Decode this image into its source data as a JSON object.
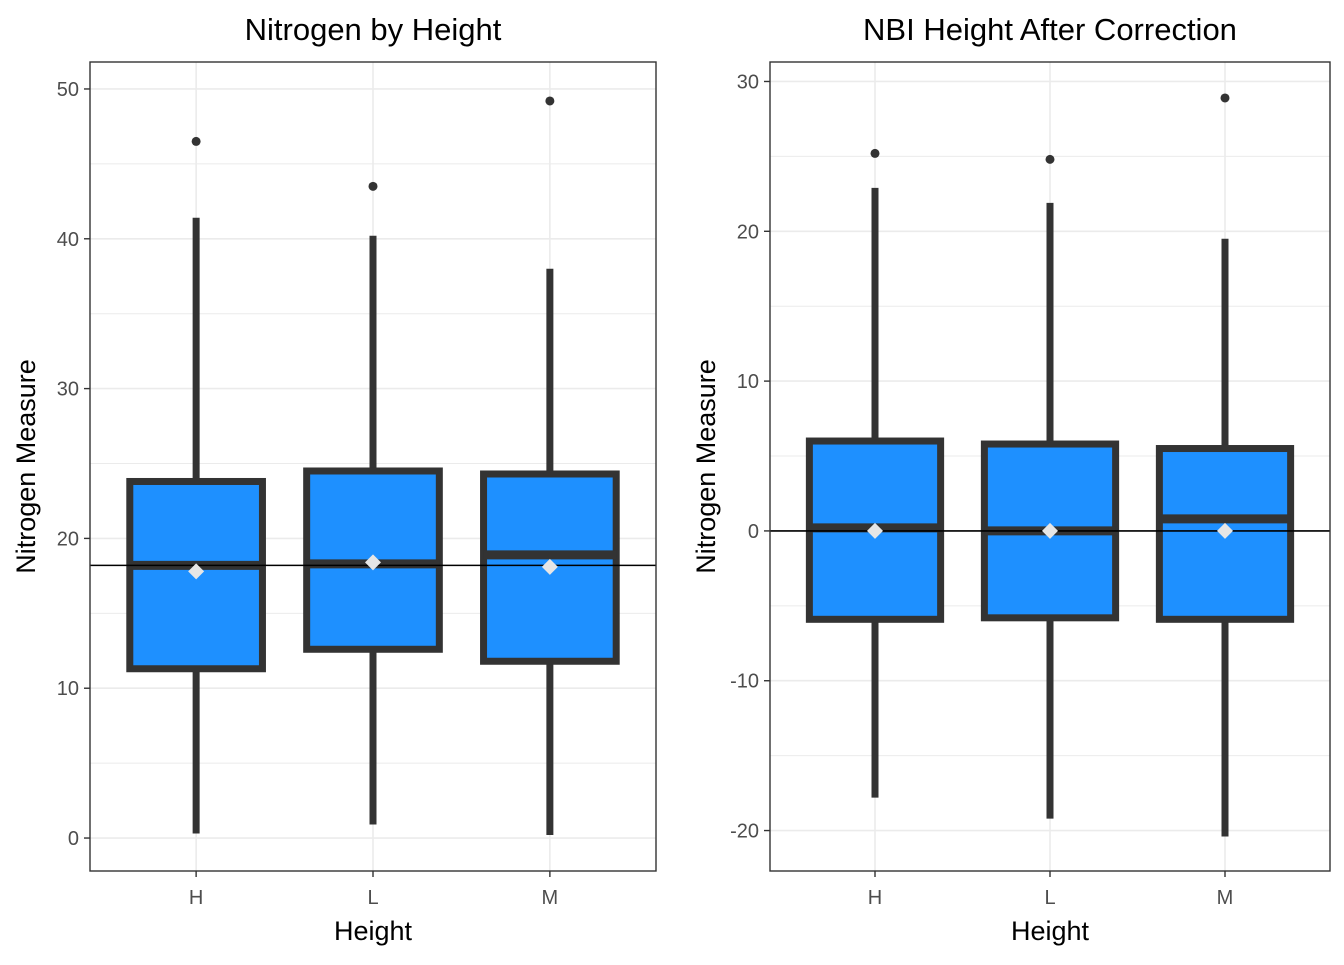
{
  "colors": {
    "box_fill": "#1E90FF",
    "box_stroke": "#333333",
    "mean_marker": "#E6E6E6",
    "grid": "#EBEBEB",
    "reference_line": "#000000",
    "axis_text": "#4D4D4D"
  },
  "chart_data": [
    {
      "type": "box",
      "title": "Nitrogen by Height",
      "xlabel": "Height",
      "ylabel": "Nitrogen Measure",
      "categories": [
        "H",
        "L",
        "M"
      ],
      "ylim": [
        -2.2,
        51.8
      ],
      "yticks": [
        0,
        10,
        20,
        30,
        40,
        50
      ],
      "yticklabels": [
        "0",
        "10",
        "20",
        "30",
        "40",
        "50"
      ],
      "grid": true,
      "reference_line": 18.2,
      "boxes": [
        {
          "category": "H",
          "q1": 11.3,
          "median": 18.2,
          "q3": 23.8,
          "whisker_low": 0.3,
          "whisker_high": 41.4,
          "mean": 17.8,
          "outliers": [
            46.5
          ]
        },
        {
          "category": "L",
          "q1": 12.6,
          "median": 18.3,
          "q3": 24.5,
          "whisker_low": 0.9,
          "whisker_high": 40.2,
          "mean": 18.4,
          "outliers": [
            43.5
          ]
        },
        {
          "category": "M",
          "q1": 11.8,
          "median": 18.9,
          "q3": 24.3,
          "whisker_low": 0.2,
          "whisker_high": 38.0,
          "mean": 18.1,
          "outliers": [
            49.2
          ]
        }
      ]
    },
    {
      "type": "box",
      "title": "NBI Height After Correction",
      "xlabel": "Height",
      "ylabel": "Nitrogen Measure",
      "categories": [
        "H",
        "L",
        "M"
      ],
      "ylim": [
        -22.7,
        31.3
      ],
      "yticks": [
        -20,
        -10,
        0,
        10,
        20,
        30
      ],
      "yticklabels": [
        "-20",
        "-10",
        "0",
        "10",
        "20",
        "30"
      ],
      "grid": true,
      "reference_line": 0,
      "boxes": [
        {
          "category": "H",
          "q1": -5.9,
          "median": 0.2,
          "q3": 6.0,
          "whisker_low": -17.8,
          "whisker_high": 22.9,
          "mean": 0.0,
          "outliers": [
            25.2
          ]
        },
        {
          "category": "L",
          "q1": -5.8,
          "median": 0.0,
          "q3": 5.8,
          "whisker_low": -19.2,
          "whisker_high": 21.9,
          "mean": 0.0,
          "outliers": [
            24.8
          ]
        },
        {
          "category": "M",
          "q1": -5.9,
          "median": 0.8,
          "q3": 5.5,
          "whisker_low": -20.4,
          "whisker_high": 19.5,
          "mean": 0.0,
          "outliers": [
            28.9
          ]
        }
      ]
    }
  ]
}
